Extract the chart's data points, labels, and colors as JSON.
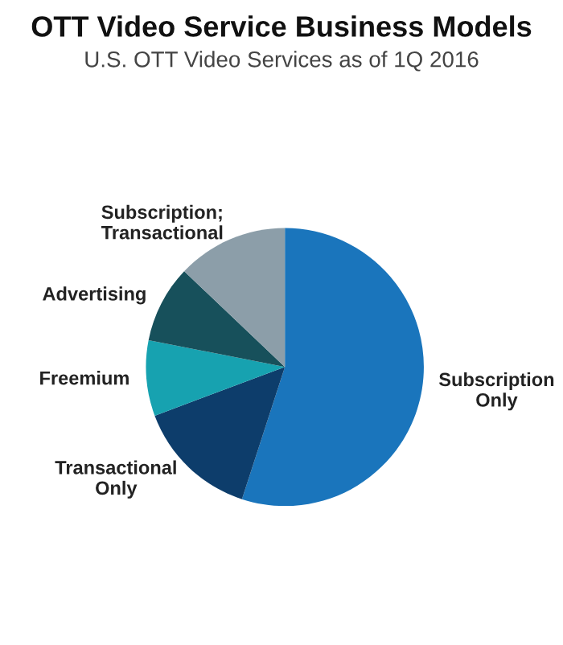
{
  "chart_data": {
    "type": "pie",
    "title": "OTT Video Service Business Models",
    "subtitle": "U.S. OTT Video Services as of 1Q 2016",
    "categories": [
      "Subscription\nOnly",
      "Transactional\nOnly",
      "Freemium",
      "Advertising",
      "Subscription;\nTransactional"
    ],
    "values": [
      55,
      14.3,
      8.8,
      9,
      12.9
    ],
    "colors": [
      "#1a75bc",
      "#0d3d6b",
      "#17a2b0",
      "#17505b",
      "#8c9ea9"
    ],
    "legend": false
  }
}
